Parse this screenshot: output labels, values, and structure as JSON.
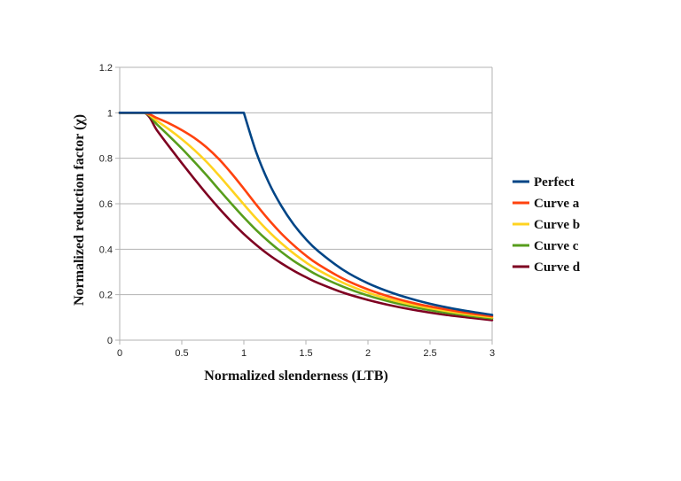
{
  "chart_data": {
    "type": "line",
    "title": "",
    "xlabel": "Normalized slenderness (LTB)",
    "ylabel": "Normalized reduction factor (χ)",
    "xlim": [
      0,
      3
    ],
    "ylim": [
      0,
      1.2
    ],
    "xticks": [
      0,
      0.5,
      1,
      1.5,
      2,
      2.5,
      3
    ],
    "yticks": [
      0,
      0.2,
      0.4,
      0.6,
      0.8,
      1,
      1.2
    ],
    "xtick_labels": [
      "0",
      "0.5",
      "1",
      "1.5",
      "2",
      "2.5",
      "3"
    ],
    "ytick_labels": [
      "0",
      "0.2",
      "0.4",
      "0.6",
      "0.8",
      "1",
      "1.2"
    ],
    "grid": "horizontal",
    "legend_position": "right",
    "x": [
      0,
      0.2,
      0.3,
      0.4,
      0.5,
      0.6,
      0.7,
      0.8,
      0.9,
      1.0,
      1.1,
      1.2,
      1.3,
      1.4,
      1.5,
      1.6,
      1.8,
      2.0,
      2.2,
      2.4,
      2.6,
      2.8,
      3.0
    ],
    "series": [
      {
        "name": "Perfect",
        "color": "#004586",
        "values": [
          1,
          1,
          1,
          1,
          1,
          1,
          1,
          1,
          1,
          1,
          0.826,
          0.694,
          0.592,
          0.51,
          0.444,
          0.391,
          0.309,
          0.25,
          0.207,
          0.174,
          0.148,
          0.128,
          0.111
        ]
      },
      {
        "name": "Curve a",
        "color": "#ff420e",
        "values": [
          1,
          1,
          0.977,
          0.953,
          0.924,
          0.89,
          0.848,
          0.796,
          0.734,
          0.666,
          0.596,
          0.53,
          0.47,
          0.418,
          0.372,
          0.333,
          0.27,
          0.223,
          0.187,
          0.159,
          0.138,
          0.12,
          0.105
        ]
      },
      {
        "name": "Curve b",
        "color": "#ffd320",
        "values": [
          1,
          1,
          0.964,
          0.926,
          0.884,
          0.837,
          0.784,
          0.724,
          0.661,
          0.597,
          0.535,
          0.478,
          0.427,
          0.382,
          0.342,
          0.308,
          0.252,
          0.209,
          0.176,
          0.151,
          0.131,
          0.114,
          0.1
        ]
      },
      {
        "name": "Curve c",
        "color": "#579d1c",
        "values": [
          1,
          1,
          0.949,
          0.897,
          0.843,
          0.785,
          0.725,
          0.662,
          0.6,
          0.54,
          0.484,
          0.434,
          0.389,
          0.349,
          0.315,
          0.284,
          0.235,
          0.196,
          0.166,
          0.142,
          0.123,
          0.108,
          0.095
        ]
      },
      {
        "name": "Curve d",
        "color": "#7e0021",
        "values": [
          1,
          1,
          0.923,
          0.85,
          0.779,
          0.71,
          0.643,
          0.58,
          0.521,
          0.467,
          0.419,
          0.376,
          0.339,
          0.306,
          0.277,
          0.251,
          0.209,
          0.177,
          0.151,
          0.13,
          0.113,
          0.1,
          0.088
        ]
      }
    ]
  }
}
